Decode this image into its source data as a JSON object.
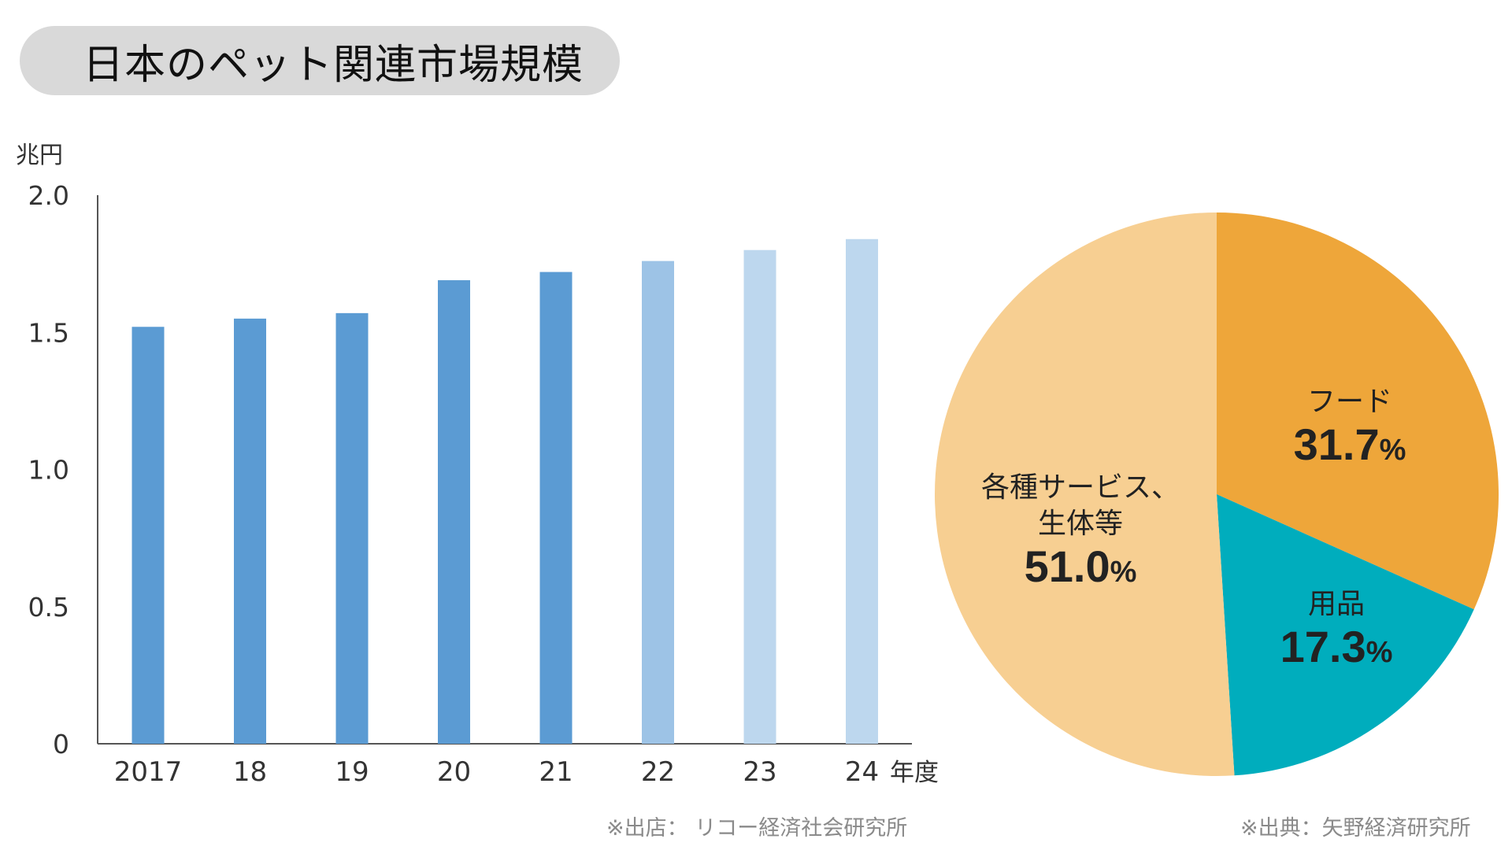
{
  "title": "日本のペット関連市場規模",
  "colors": {
    "bar_dark": "#5b9bd3",
    "bar_mid": "#9dc3e6",
    "bar_light": "#bdd7ee",
    "pie_food": "#eea63a",
    "pie_goods": "#00adbd",
    "pie_services": "#f7cf92"
  },
  "chart_data": [
    {
      "type": "bar",
      "ylabel": "兆円",
      "ylim": [
        0,
        2.0
      ],
      "yticks": [
        "0",
        "0.5",
        "1.0",
        "1.5",
        "2.0"
      ],
      "categories": [
        "2017",
        "18",
        "19",
        "20",
        "21",
        "22",
        "23",
        "24"
      ],
      "x_suffix": "年度",
      "values": [
        1.52,
        1.55,
        1.57,
        1.69,
        1.72,
        1.76,
        1.8,
        1.84
      ],
      "shades": [
        "dark",
        "dark",
        "dark",
        "dark",
        "dark",
        "mid",
        "light",
        "light"
      ],
      "source": "※出店： リコー経済社会研究所"
    },
    {
      "type": "pie",
      "slices": [
        {
          "name": "フード",
          "value": 31.7,
          "label": "31.7",
          "color": "#eea63a"
        },
        {
          "name": "用品",
          "value": 17.3,
          "label": "17.3",
          "color": "#00adbd"
        },
        {
          "name_lines": [
            "各種サービス、",
            "生体等"
          ],
          "value": 51.0,
          "label": "51.0",
          "color": "#f7cf92"
        }
      ],
      "unit": "%",
      "source": "※出典：矢野経済研究所"
    }
  ]
}
